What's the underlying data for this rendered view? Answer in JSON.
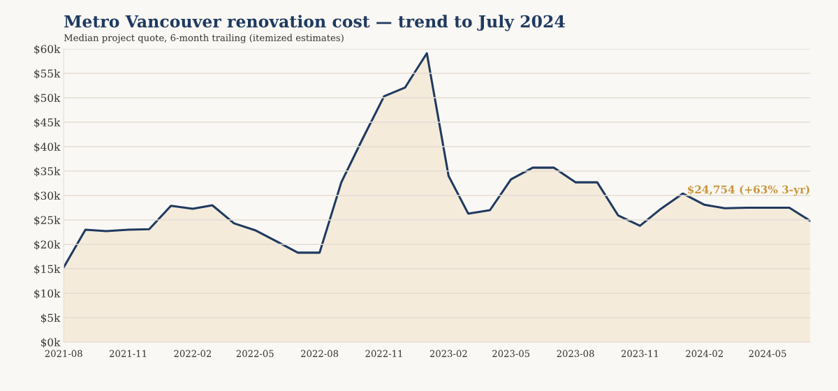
{
  "chart_data": {
    "type": "area",
    "title": "Metro Vancouver renovation cost — trend to July 2024",
    "subtitle": "Median project quote, 6-month trailing (itemized estimates)",
    "x": [
      "2021-08",
      "2021-09",
      "2021-10",
      "2021-11",
      "2021-12",
      "2022-01",
      "2022-02",
      "2022-03",
      "2022-04",
      "2022-05",
      "2022-06",
      "2022-07",
      "2022-08",
      "2022-09",
      "2022-10",
      "2022-11",
      "2022-12",
      "2023-01",
      "2023-02",
      "2023-03",
      "2023-04",
      "2023-05",
      "2023-06",
      "2023-07",
      "2023-08",
      "2023-09",
      "2023-10",
      "2023-11",
      "2023-12",
      "2024-01",
      "2024-02",
      "2024-03",
      "2024-04",
      "2024-05",
      "2024-06",
      "2024-07"
    ],
    "series": [
      {
        "color": "#1f3a60",
        "values": [
          15.3,
          23.0,
          22.7,
          23.0,
          23.1,
          27.9,
          27.3,
          28.0,
          24.3,
          22.9,
          20.6,
          18.3,
          18.3,
          32.7,
          41.5,
          50.3,
          52.1,
          59.1,
          34.0,
          26.3,
          27.0,
          33.3,
          35.7,
          35.7,
          32.7,
          32.7,
          25.9,
          23.8,
          27.3,
          30.4,
          28.1,
          27.4,
          27.5,
          27.5,
          27.5,
          24.8
        ]
      }
    ],
    "xlim": [
      "2021-08",
      "2024-07"
    ],
    "xticks": [
      "2021-08",
      "2021-11",
      "2022-02",
      "2022-05",
      "2022-08",
      "2022-11",
      "2023-02",
      "2023-05",
      "2023-08",
      "2023-11",
      "2024-02",
      "2024-05"
    ],
    "ylim": [
      0,
      60
    ],
    "yticks": [
      {
        "value": 0,
        "label": "$0k"
      },
      {
        "value": 5,
        "label": "$5k"
      },
      {
        "value": 10,
        "label": "$10k"
      },
      {
        "value": 15,
        "label": "$15k"
      },
      {
        "value": 20,
        "label": "$20k"
      },
      {
        "value": 25,
        "label": "$25k"
      },
      {
        "value": 30,
        "label": "$30k"
      },
      {
        "value": 35,
        "label": "$35k"
      },
      {
        "value": 40,
        "label": "$40k"
      },
      {
        "value": 45,
        "label": "$45k"
      },
      {
        "value": 50,
        "label": "$50k"
      },
      {
        "value": 55,
        "label": "$55k"
      },
      {
        "value": 60,
        "label": "$60k"
      }
    ],
    "annotations": [
      {
        "text": "$24,754 (+63% 3-yr)",
        "x": "2024-07",
        "y": 24.8
      }
    ],
    "grid": "y",
    "legend": false,
    "marker": "none",
    "line_style": "solid"
  }
}
